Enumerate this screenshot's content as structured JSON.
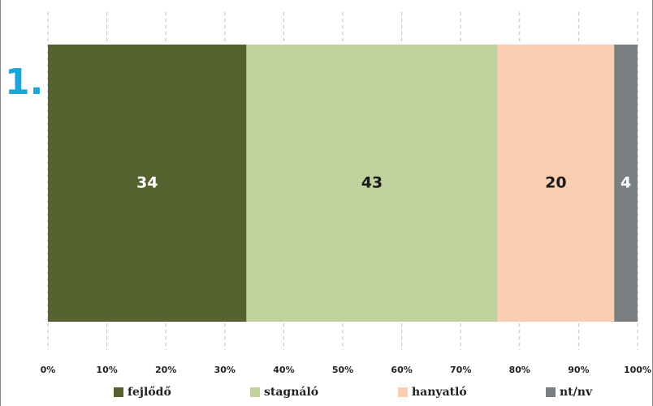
{
  "chart_data": {
    "type": "bar",
    "stacking": "percent",
    "label": "1.",
    "label_color": "#1aa6d9",
    "series": [
      {
        "name": "fejlődő",
        "color": "#556230",
        "label_color": "#ffffff",
        "values": [
          34
        ]
      },
      {
        "name": "stagnáló",
        "color": "#bfd19c",
        "label_color": "#1a1a1a",
        "values": [
          43
        ]
      },
      {
        "name": "hanyatló",
        "color": "#f8cdb1",
        "label_color": "#1a1a1a",
        "values": [
          20
        ]
      },
      {
        "name": "nt/nv",
        "color": "#7b7e81",
        "label_color": "#ffffff",
        "values": [
          4
        ]
      }
    ],
    "xlim": [
      0,
      100
    ],
    "xticks": [
      {
        "value": 0,
        "label": "0%"
      },
      {
        "value": 10,
        "label": "10%"
      },
      {
        "value": 20,
        "label": "20%"
      },
      {
        "value": 30,
        "label": "30%"
      },
      {
        "value": 40,
        "label": "40%"
      },
      {
        "value": 50,
        "label": "50%"
      },
      {
        "value": 60,
        "label": "60%"
      },
      {
        "value": 70,
        "label": "70%"
      },
      {
        "value": 80,
        "label": "80%"
      },
      {
        "value": 90,
        "label": "90%"
      },
      {
        "value": 100,
        "label": "100%"
      }
    ],
    "grid": true,
    "legend": "bottom"
  }
}
